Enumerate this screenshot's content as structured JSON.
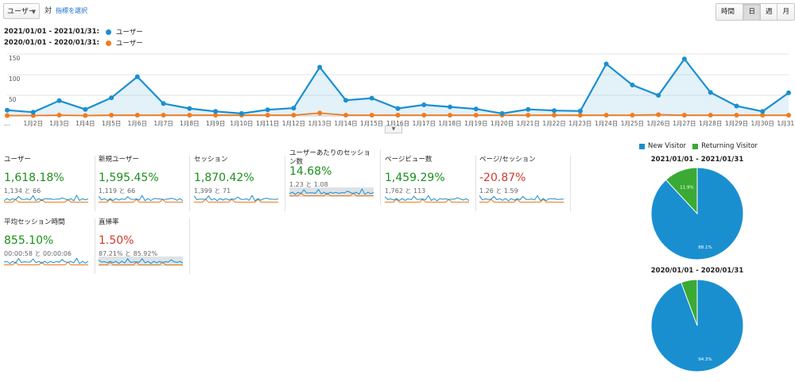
{
  "toolbar": {
    "metric_select": "ユーザー",
    "vs_text": "対",
    "select_metric_link": "指標を選択",
    "periods": [
      "時間別",
      "日",
      "週",
      "月"
    ],
    "active_period": "日"
  },
  "legend": [
    {
      "range": "2021/01/01 - 2021/01/31:",
      "name": "ユーザー",
      "color": "#1a8fd0"
    },
    {
      "range": "2020/01/01 - 2020/01/31:",
      "name": "ユーザー",
      "color": "#f27b1b"
    }
  ],
  "chart_data": {
    "type": "line",
    "ylim": [
      0,
      150
    ],
    "yticks": [
      "150",
      "100",
      "50"
    ],
    "categories": [
      "...",
      "1月2日",
      "1月3日",
      "1月4日",
      "1月5日",
      "1月6日",
      "1月7日",
      "1月8日",
      "1月9日",
      "1月10日",
      "1月11日",
      "1月12日",
      "1月13日",
      "1月14日",
      "1月15日",
      "1月16日",
      "1月17日",
      "1月18日",
      "1月19日",
      "1月20日",
      "1月21日",
      "1月22日",
      "1月23日",
      "1月24日",
      "1月25日",
      "1月26日",
      "1月27日",
      "1月28日",
      "1月29日",
      "1月30日",
      "1月31日"
    ],
    "series": [
      {
        "name": "ユーザー",
        "color": "#1a8fd0",
        "values": [
          14,
          9,
          37,
          16,
          44,
          95,
          30,
          18,
          11,
          6,
          15,
          19,
          118,
          38,
          43,
          18,
          27,
          22,
          17,
          6,
          16,
          13,
          12,
          126,
          75,
          50,
          138,
          57,
          24,
          11,
          56
        ]
      },
      {
        "name": "ユーザー",
        "color": "#f27b1b",
        "values": [
          1,
          1,
          2,
          1,
          2,
          2,
          2,
          2,
          2,
          2,
          2,
          2,
          7,
          2,
          2,
          2,
          2,
          2,
          2,
          2,
          2,
          2,
          2,
          2,
          2,
          3,
          2,
          2,
          2,
          2,
          2
        ]
      }
    ]
  },
  "cards": [
    {
      "title": "ユーザー",
      "value": "1,618.18%",
      "sign": "pos",
      "sub": "1,134 と 66"
    },
    {
      "title": "新規ユーザー",
      "value": "1,595.45%",
      "sign": "pos",
      "sub": "1,119 と 66"
    },
    {
      "title": "セッション",
      "value": "1,870.42%",
      "sign": "pos",
      "sub": "1,399 と 71"
    },
    {
      "title": "ユーザーあたりのセッション数",
      "value": "14.68%",
      "sign": "pos",
      "sub": "1.23 と 1.08"
    },
    {
      "title": "ページビュー数",
      "value": "1,459.29%",
      "sign": "pos",
      "sub": "1,762 と 113"
    },
    {
      "title": "ページ/セッション",
      "value": "-20.87%",
      "sign": "neg",
      "sub": "1.26 と 1.59"
    },
    {
      "title": "平均セッション時間",
      "value": "855.10%",
      "sign": "pos",
      "sub": "00:00:58 と 00:00:06"
    },
    {
      "title": "直帰率",
      "value": "1.50%",
      "sign": "neg",
      "sub": "87.21% と 85.92%"
    }
  ],
  "pie": {
    "legend": [
      {
        "label": "New Visitor",
        "color": "#1a8fd0"
      },
      {
        "label": "Returning Visitor",
        "color": "#3aaa35"
      }
    ],
    "charts": [
      {
        "title": "2021/01/01 - 2021/01/31",
        "new": 88.1,
        "returning": 11.9,
        "new_label": "88.1%",
        "returning_label": "11.9%"
      },
      {
        "title": "2020/01/01 - 2020/01/31",
        "new": 94.3,
        "returning": 5.7,
        "new_label": "94.3%",
        "returning_label": ""
      }
    ]
  }
}
